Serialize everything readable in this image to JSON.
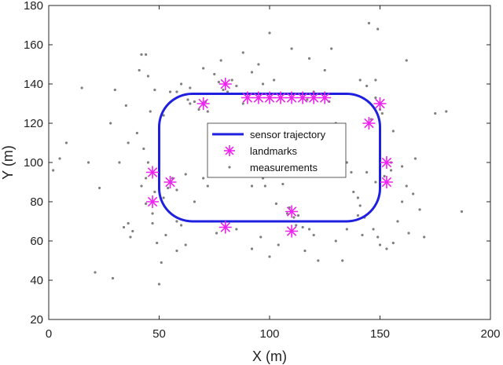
{
  "chart_data": {
    "type": "scatter",
    "title": "",
    "xlabel": "X (m)",
    "ylabel": "Y (m)",
    "xlim": [
      0,
      200
    ],
    "ylim": [
      20,
      180
    ],
    "xticks": [
      0,
      50,
      100,
      150,
      200
    ],
    "yticks": [
      20,
      40,
      60,
      80,
      100,
      120,
      140,
      160,
      180
    ],
    "grid": false,
    "legend_position": "center",
    "colors": {
      "trajectory": "#1f1fe0",
      "landmarks": "#ee22ee",
      "measurements": "#808080"
    },
    "series": [
      {
        "name": "sensor trajectory",
        "kind": "rounded-rectangle-path",
        "x_range": [
          50,
          150
        ],
        "y_range": [
          70,
          135
        ],
        "corner_radius": 15
      },
      {
        "name": "landmarks",
        "marker": "asterisk",
        "points": [
          [
            80,
            140
          ],
          [
            70,
            130
          ],
          [
            90,
            133
          ],
          [
            95,
            133
          ],
          [
            100,
            133
          ],
          [
            105,
            133
          ],
          [
            110,
            133
          ],
          [
            115,
            133
          ],
          [
            120,
            133
          ],
          [
            125,
            133
          ],
          [
            150,
            130
          ],
          [
            145,
            120
          ],
          [
            47,
            95
          ],
          [
            55,
            90
          ],
          [
            47,
            80
          ],
          [
            153,
            100
          ],
          [
            153,
            90
          ],
          [
            110,
            75
          ],
          [
            80,
            67
          ],
          [
            110,
            65
          ]
        ]
      },
      {
        "name": "measurements",
        "marker": "dot",
        "points": [
          [
            15,
            138
          ],
          [
            21,
            44
          ],
          [
            28,
            120
          ],
          [
            29,
            41
          ],
          [
            30,
            137
          ],
          [
            35,
            129
          ],
          [
            34,
            67
          ],
          [
            36,
            69
          ],
          [
            37,
            62
          ],
          [
            38,
            65
          ],
          [
            42,
            155
          ],
          [
            41,
            147
          ],
          [
            44,
            155
          ],
          [
            45,
            144
          ],
          [
            43,
            107
          ],
          [
            45,
            100
          ],
          [
            42,
            88
          ],
          [
            44,
            79
          ],
          [
            47,
            69
          ],
          [
            48,
            85
          ],
          [
            50,
            38
          ],
          [
            51,
            49
          ],
          [
            49,
            59
          ],
          [
            53,
            63
          ],
          [
            58,
            70
          ],
          [
            58,
            55
          ],
          [
            60,
            68
          ],
          [
            62,
            58
          ],
          [
            63,
            132
          ],
          [
            64,
            130
          ],
          [
            66,
            131
          ],
          [
            68,
            127
          ],
          [
            72,
            126
          ],
          [
            71,
            131
          ],
          [
            75,
            145
          ],
          [
            77,
            141
          ],
          [
            79,
            137
          ],
          [
            81,
            136
          ],
          [
            83,
            142
          ],
          [
            85,
            139
          ],
          [
            88,
            130
          ],
          [
            90,
            117
          ],
          [
            92,
            88
          ],
          [
            97,
            92
          ],
          [
            98,
            88
          ],
          [
            103,
            79
          ],
          [
            106,
            89
          ],
          [
            108,
            74
          ],
          [
            109,
            77
          ],
          [
            111,
            72
          ],
          [
            112,
            68
          ],
          [
            113,
            73
          ],
          [
            115,
            67
          ],
          [
            118,
            66
          ],
          [
            120,
            63
          ],
          [
            117,
            132
          ],
          [
            120,
            136
          ],
          [
            127,
            131
          ],
          [
            130,
            120
          ],
          [
            132,
            110
          ],
          [
            135,
            100
          ],
          [
            137,
            95
          ],
          [
            138,
            85
          ],
          [
            140,
            82
          ],
          [
            141,
            78
          ],
          [
            143,
            72
          ],
          [
            147,
            66
          ],
          [
            149,
            62
          ],
          [
            150,
            58
          ],
          [
            153,
            56
          ],
          [
            156,
            59
          ],
          [
            158,
            70
          ],
          [
            160,
            80
          ],
          [
            162,
            88
          ],
          [
            165,
            84
          ],
          [
            166,
            102
          ],
          [
            168,
            76
          ],
          [
            170,
            62
          ],
          [
            175,
            125
          ],
          [
            180,
            126
          ],
          [
            187,
            75
          ],
          [
            155,
            100
          ],
          [
            155,
            96
          ],
          [
            152,
            93
          ],
          [
            150,
            127
          ],
          [
            148,
            133
          ],
          [
            151,
            125
          ],
          [
            146,
            122
          ],
          [
            144,
            139
          ],
          [
            141,
            142
          ],
          [
            125,
            147
          ],
          [
            118,
            153
          ],
          [
            110,
            158
          ],
          [
            100,
            166
          ],
          [
            95,
            150
          ],
          [
            88,
            156
          ],
          [
            78,
            152
          ],
          [
            70,
            148
          ],
          [
            64,
            138
          ],
          [
            58,
            136
          ],
          [
            55,
            136
          ],
          [
            52,
            124
          ],
          [
            48,
            137
          ],
          [
            46,
            126
          ],
          [
            40,
            115
          ],
          [
            36,
            110
          ],
          [
            32,
            100
          ],
          [
            23,
            87
          ],
          [
            18,
            100
          ],
          [
            8,
            110
          ],
          [
            5,
            102
          ],
          [
            2,
            96
          ],
          [
            162,
            152
          ],
          [
            148,
            142
          ],
          [
            149,
            168
          ],
          [
            145,
            171
          ],
          [
            128,
            158
          ],
          [
            102,
            142
          ],
          [
            97,
            140
          ],
          [
            92,
            146
          ],
          [
            60,
            140
          ],
          [
            70,
            92
          ],
          [
            72,
            88
          ],
          [
            58,
            86
          ],
          [
            54,
            87
          ],
          [
            56,
            92
          ],
          [
            52,
            82
          ],
          [
            47,
            74
          ],
          [
            44,
            92
          ],
          [
            62,
            94
          ],
          [
            66,
            80
          ],
          [
            74,
            70
          ],
          [
            76,
            64
          ],
          [
            85,
            66
          ],
          [
            92,
            56
          ],
          [
            96,
            62
          ],
          [
            100,
            52
          ],
          [
            104,
            58
          ],
          [
            116,
            55
          ],
          [
            122,
            50
          ],
          [
            130,
            60
          ],
          [
            133,
            50
          ],
          [
            135,
            66
          ],
          [
            140,
            73
          ],
          [
            142,
            63
          ],
          [
            144,
            95
          ],
          [
            148,
            90
          ],
          [
            156,
            116
          ],
          [
            160,
            98
          ],
          [
            163,
            64
          ]
        ]
      }
    ]
  }
}
